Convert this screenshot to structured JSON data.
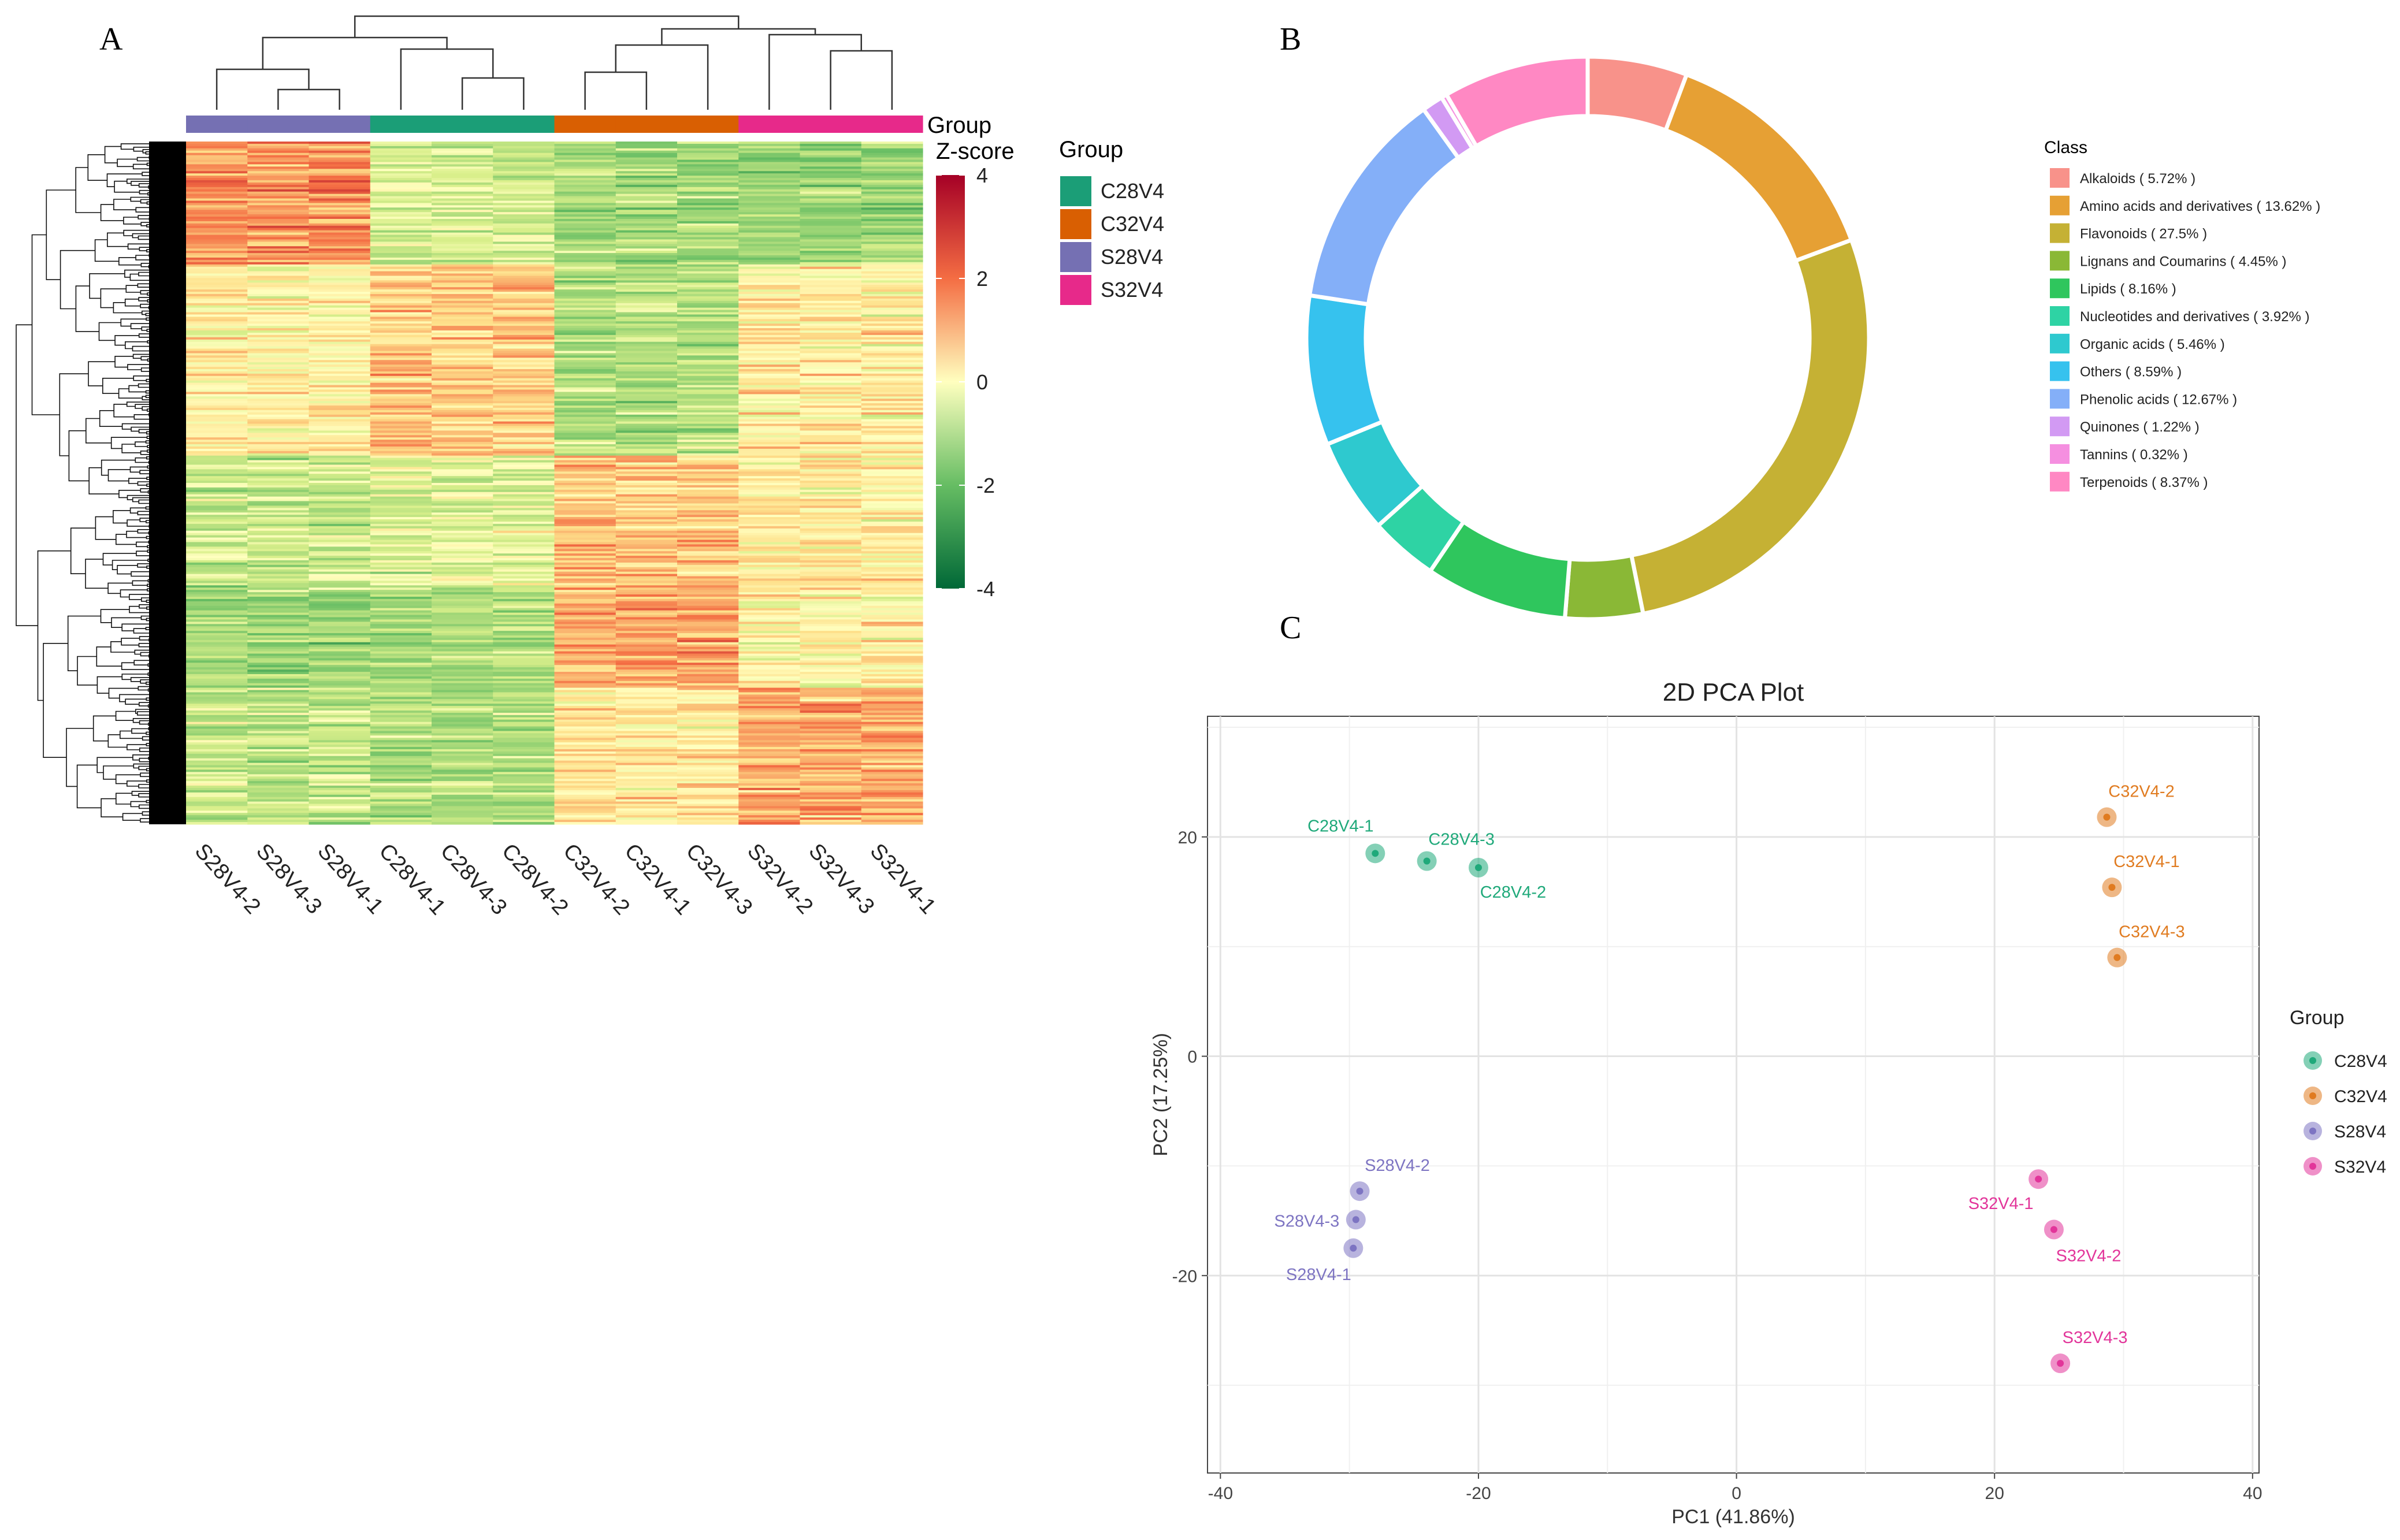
{
  "panel_labels": {
    "a": "A",
    "b": "B",
    "c": "C"
  },
  "chart_data": [
    {
      "type": "heatmap",
      "panel": "A",
      "samples": [
        "S28V4-2",
        "S28V4-3",
        "S28V4-1",
        "C28V4-1",
        "C28V4-3",
        "C28V4-2",
        "C32V4-2",
        "C32V4-1",
        "C32V4-3",
        "S32V4-2",
        "S32V4-3",
        "S32V4-1"
      ],
      "sample_groups": [
        "S28V4",
        "S28V4",
        "S28V4",
        "C28V4",
        "C28V4",
        "C28V4",
        "C32V4",
        "C32V4",
        "C32V4",
        "S32V4",
        "S32V4",
        "S32V4"
      ],
      "annotation_title": "Group",
      "colorbar_title": "Z-score",
      "colorbar_ticks": [
        4,
        2,
        0,
        -2,
        -4
      ],
      "colorbar_range": [
        -4,
        4
      ],
      "legend_title": "Group",
      "legend": [
        {
          "name": "C28V4",
          "color": "#1B9E77"
        },
        {
          "name": "C32V4",
          "color": "#D95F02"
        },
        {
          "name": "S28V4",
          "color": "#7570B3"
        },
        {
          "name": "S32V4",
          "color": "#E7298A"
        }
      ],
      "num_rows": 300,
      "note": "Row-wise z-scored metabolite abundances, hierarchically clustered rows and columns"
    },
    {
      "type": "pie",
      "panel": "B",
      "donut": true,
      "legend_title": "Class",
      "slices": [
        {
          "label": "Alkaloids ( 5.72% )",
          "value": 5.72,
          "color": "#F8928A"
        },
        {
          "label": "Amino acids and derivatives ( 13.62% )",
          "value": 13.62,
          "color": "#E6A034"
        },
        {
          "label": "Flavonoids ( 27.5% )",
          "value": 27.5,
          "color": "#C5B134"
        },
        {
          "label": "Lignans and Coumarins ( 4.45% )",
          "value": 4.45,
          "color": "#8AB836"
        },
        {
          "label": "Lipids ( 8.16% )",
          "value": 8.16,
          "color": "#2FC65D"
        },
        {
          "label": "Nucleotides and derivatives ( 3.92% )",
          "value": 3.92,
          "color": "#2ED3A4"
        },
        {
          "label": "Organic acids ( 5.46% )",
          "value": 5.46,
          "color": "#2EC9CF"
        },
        {
          "label": "Others ( 8.59% )",
          "value": 8.59,
          "color": "#36C2EE"
        },
        {
          "label": "Phenolic acids ( 12.67% )",
          "value": 12.67,
          "color": "#84AFF8"
        },
        {
          "label": "Quinones ( 1.22% )",
          "value": 1.22,
          "color": "#D29AF3"
        },
        {
          "label": "Tannins ( 0.32% )",
          "value": 0.32,
          "color": "#F58FE0"
        },
        {
          "label": "Terpenoids ( 8.37% )",
          "value": 8.37,
          "color": "#FF88C3"
        }
      ]
    },
    {
      "type": "scatter",
      "panel": "C",
      "title": "2D PCA Plot",
      "xlabel": "PC1 (41.86%)",
      "ylabel": "PC2 (17.25%)",
      "xlim": [
        -41,
        40.5
      ],
      "ylim": [
        -38,
        31
      ],
      "xticks": [
        -40,
        -20,
        0,
        20,
        40
      ],
      "yticks": [
        20,
        0,
        -20
      ],
      "legend_title": "Group",
      "legend": [
        {
          "name": "C28V4",
          "color": "#1FA97A"
        },
        {
          "name": "C32V4",
          "color": "#E07B20"
        },
        {
          "name": "S28V4",
          "color": "#7D74C2"
        },
        {
          "name": "S32V4",
          "color": "#E2359A"
        }
      ],
      "points": [
        {
          "label": "C28V4-1",
          "group": "C28V4",
          "x": -28,
          "y": 18.5
        },
        {
          "label": "C28V4-3",
          "group": "C28V4",
          "x": -24,
          "y": 17.8
        },
        {
          "label": "C28V4-2",
          "group": "C28V4",
          "x": -20,
          "y": 17.2
        },
        {
          "label": "C32V4-2",
          "group": "C32V4",
          "x": 28.7,
          "y": 21.8
        },
        {
          "label": "C32V4-1",
          "group": "C32V4",
          "x": 29.1,
          "y": 15.4
        },
        {
          "label": "C32V4-3",
          "group": "C32V4",
          "x": 29.5,
          "y": 9.0
        },
        {
          "label": "S28V4-2",
          "group": "S28V4",
          "x": -29.2,
          "y": -12.3
        },
        {
          "label": "S28V4-3",
          "group": "S28V4",
          "x": -29.5,
          "y": -14.9
        },
        {
          "label": "S28V4-1",
          "group": "S28V4",
          "x": -29.7,
          "y": -17.5
        },
        {
          "label": "S32V4-1",
          "group": "S32V4",
          "x": 23.4,
          "y": -11.2
        },
        {
          "label": "S32V4-2",
          "group": "S32V4",
          "x": 24.6,
          "y": -15.8
        },
        {
          "label": "S32V4-3",
          "group": "S32V4",
          "x": 25.1,
          "y": -28.0
        }
      ]
    }
  ]
}
